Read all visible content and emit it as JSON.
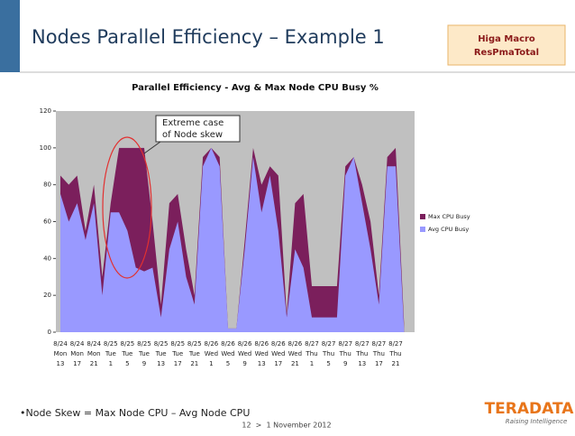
{
  "title": "Nodes Parallel Efficiency – Example 1",
  "badge": [
    "Higa Macro",
    "ResPmaTotal"
  ],
  "bullet": "•Node Skew = Max Node CPU – Avg Node CPU",
  "footer": "12  >  1 November 2012",
  "logo": {
    "name": "TERADATA",
    "tagline": "Raising Intelligence"
  },
  "chart_data": {
    "type": "area",
    "title": "Parallel Efficiency - Avg & Max Node CPU Busy %",
    "annotation": [
      "Extreme case",
      "of Node skew"
    ],
    "categories": [
      [
        "8/24",
        "Mon",
        "13"
      ],
      null,
      [
        "8/24",
        "Mon",
        "17"
      ],
      null,
      [
        "8/24",
        "Mon",
        "21"
      ],
      null,
      [
        "8/25",
        "Tue",
        "1"
      ],
      null,
      [
        "8/25",
        "Tue",
        "5"
      ],
      null,
      [
        "8/25",
        "Tue",
        "9"
      ],
      null,
      [
        "8/25",
        "Tue",
        "13"
      ],
      null,
      [
        "8/25",
        "Tue",
        "17"
      ],
      null,
      [
        "8/25",
        "Tue",
        "21"
      ],
      null,
      [
        "8/26",
        "Wed",
        "1"
      ],
      null,
      [
        "8/26",
        "Wed",
        "5"
      ],
      null,
      [
        "8/26",
        "Wed",
        "9"
      ],
      null,
      [
        "8/26",
        "Wed",
        "13"
      ],
      null,
      [
        "8/26",
        "Wed",
        "17"
      ],
      null,
      [
        "8/26",
        "Wed",
        "21"
      ],
      null,
      [
        "8/27",
        "Thu",
        "1"
      ],
      null,
      [
        "8/27",
        "Thu",
        "5"
      ],
      null,
      [
        "8/27",
        "Thu",
        "9"
      ],
      null,
      [
        "8/27",
        "Thu",
        "13"
      ],
      null,
      [
        "8/27",
        "Thu",
        "17"
      ],
      null,
      [
        "8/27",
        "Thu",
        "21"
      ],
      null
    ],
    "series": [
      {
        "name": "Max CPU Busy",
        "color": "#7b1f5c",
        "values": [
          85,
          80,
          85,
          55,
          80,
          30,
          70,
          100,
          100,
          100,
          100,
          60,
          15,
          70,
          75,
          45,
          20,
          95,
          100,
          95,
          2,
          2,
          50,
          100,
          80,
          90,
          85,
          10,
          70,
          75,
          25,
          25,
          25,
          25,
          90,
          95,
          80,
          60,
          20,
          95,
          100,
          5
        ]
      },
      {
        "name": "Avg CPU Busy",
        "color": "#9999ff",
        "values": [
          75,
          60,
          70,
          50,
          70,
          20,
          65,
          65,
          55,
          35,
          33,
          35,
          8,
          45,
          60,
          30,
          15,
          90,
          100,
          90,
          2,
          2,
          45,
          95,
          65,
          85,
          55,
          8,
          45,
          35,
          8,
          8,
          8,
          8,
          85,
          95,
          70,
          45,
          15,
          90,
          90,
          2
        ]
      }
    ],
    "ylim": [
      0,
      120
    ],
    "yticks": [
      0,
      20,
      40,
      60,
      80,
      100,
      120
    ]
  }
}
